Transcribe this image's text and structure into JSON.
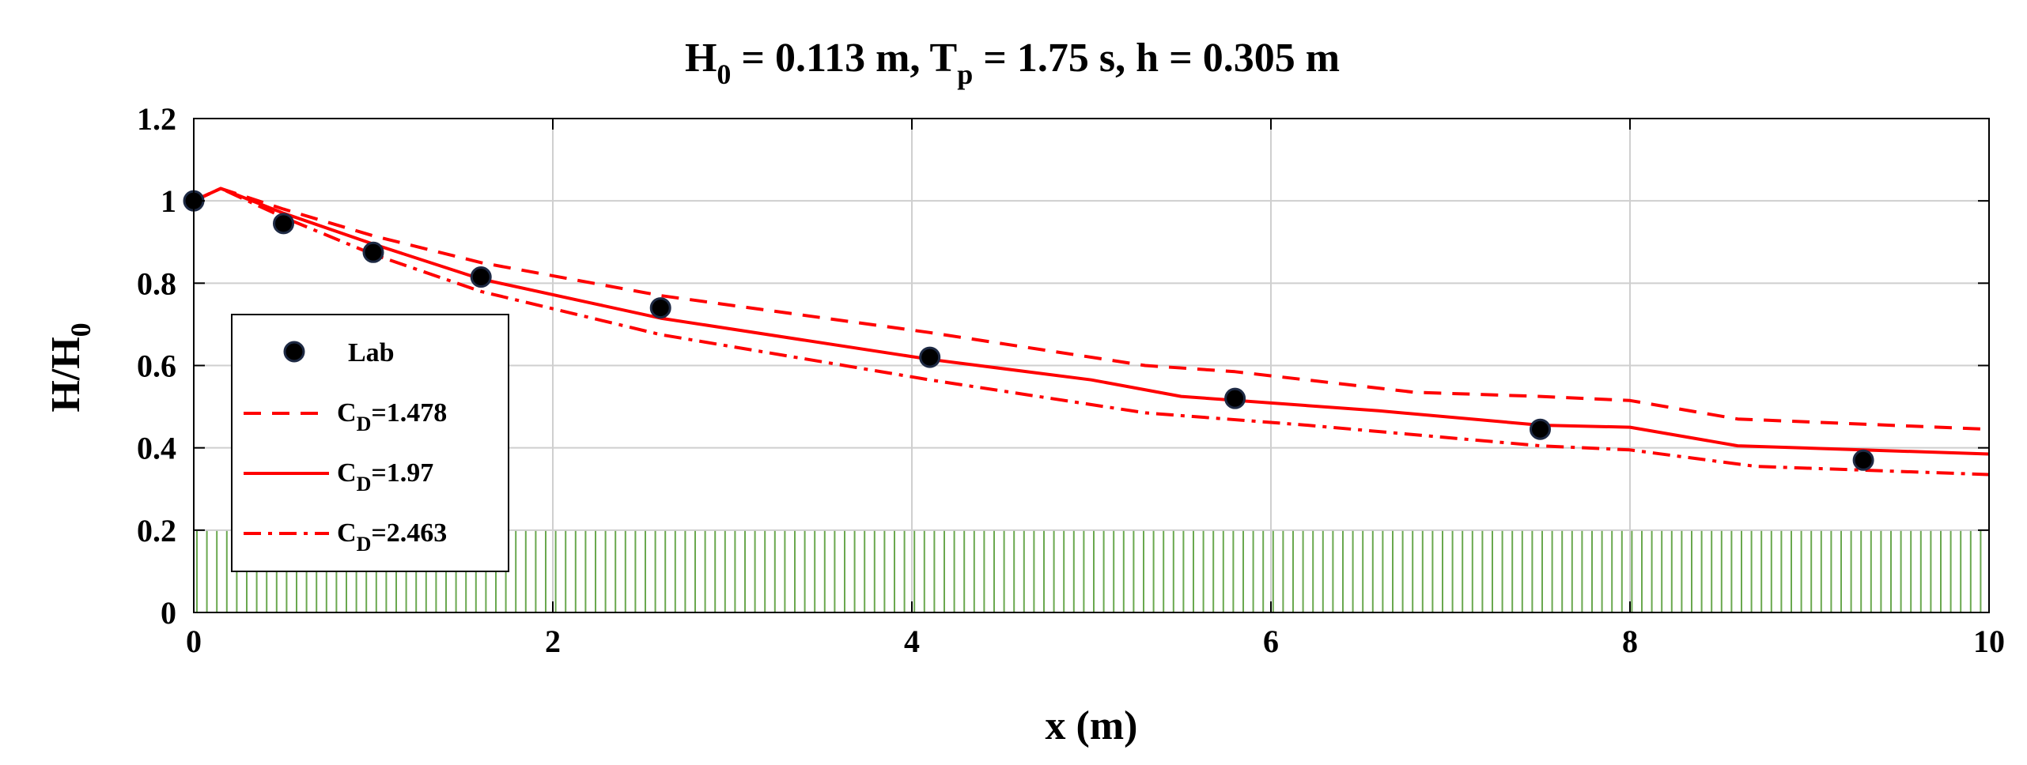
{
  "chart_data": {
    "type": "line",
    "title": {
      "parts": [
        {
          "text": "H",
          "sub": "0"
        },
        {
          "text": " = 0.113 m, T",
          "sub": "p"
        },
        {
          "text": " = 1.75 s, h = 0.305 m",
          "sub": ""
        }
      ]
    },
    "xlabel": "x (m)",
    "ylabel": {
      "text": "H/H",
      "sub": "0"
    },
    "xlim": [
      0,
      10
    ],
    "ylim": [
      0,
      1.2
    ],
    "xticks": [
      0,
      2,
      4,
      6,
      8,
      10
    ],
    "yticks": [
      0,
      0.2,
      0.4,
      0.6,
      0.8,
      1,
      1.2
    ],
    "xtick_labels": [
      "0",
      "2",
      "4",
      "6",
      "8",
      "10"
    ],
    "ytick_labels": [
      "0",
      "0.2",
      "0.4",
      "0.6",
      "0.8",
      "1",
      "1.2"
    ],
    "grid": true,
    "vegetation": {
      "x_start": 0,
      "x_end": 10,
      "height": 0.2,
      "color": "#6aa84f"
    },
    "lab_points": {
      "name": "Lab",
      "x": [
        0,
        0.5,
        1.0,
        1.6,
        2.6,
        4.1,
        5.8,
        7.5,
        9.3
      ],
      "y": [
        1.0,
        0.945,
        0.875,
        0.815,
        0.74,
        0.62,
        0.52,
        0.445,
        0.37
      ]
    },
    "series": [
      {
        "name_main": "C",
        "name_sub": "D",
        "name_value": "=1.478",
        "style": "dashed",
        "color": "#ff0000",
        "x": [
          0,
          0.15,
          0.5,
          1.0,
          1.6,
          2.6,
          4.1,
          5.3,
          5.8,
          6.8,
          7.5,
          8.0,
          8.6,
          10.0
        ],
        "y": [
          1.0,
          1.03,
          0.98,
          0.915,
          0.85,
          0.77,
          0.68,
          0.6,
          0.585,
          0.535,
          0.525,
          0.515,
          0.47,
          0.445
        ]
      },
      {
        "name_main": "C",
        "name_sub": "D",
        "name_value": "=1.97",
        "style": "solid",
        "color": "#ff0000",
        "x": [
          0,
          0.15,
          0.5,
          1.0,
          1.6,
          2.6,
          4.1,
          5.0,
          5.5,
          6.6,
          7.5,
          8.0,
          8.6,
          10.0
        ],
        "y": [
          1.0,
          1.03,
          0.97,
          0.895,
          0.81,
          0.715,
          0.615,
          0.565,
          0.525,
          0.49,
          0.455,
          0.45,
          0.405,
          0.385
        ]
      },
      {
        "name_main": "C",
        "name_sub": "D",
        "name_value": "=2.463",
        "style": "dashdot",
        "color": "#ff0000",
        "x": [
          0,
          0.15,
          0.5,
          1.0,
          1.6,
          2.6,
          4.1,
          5.3,
          6.2,
          7.5,
          8.0,
          8.7,
          10.0
        ],
        "y": [
          1.0,
          1.03,
          0.96,
          0.87,
          0.78,
          0.675,
          0.565,
          0.485,
          0.455,
          0.405,
          0.395,
          0.355,
          0.335
        ]
      }
    ],
    "legend": {
      "position": "lower-left"
    }
  }
}
